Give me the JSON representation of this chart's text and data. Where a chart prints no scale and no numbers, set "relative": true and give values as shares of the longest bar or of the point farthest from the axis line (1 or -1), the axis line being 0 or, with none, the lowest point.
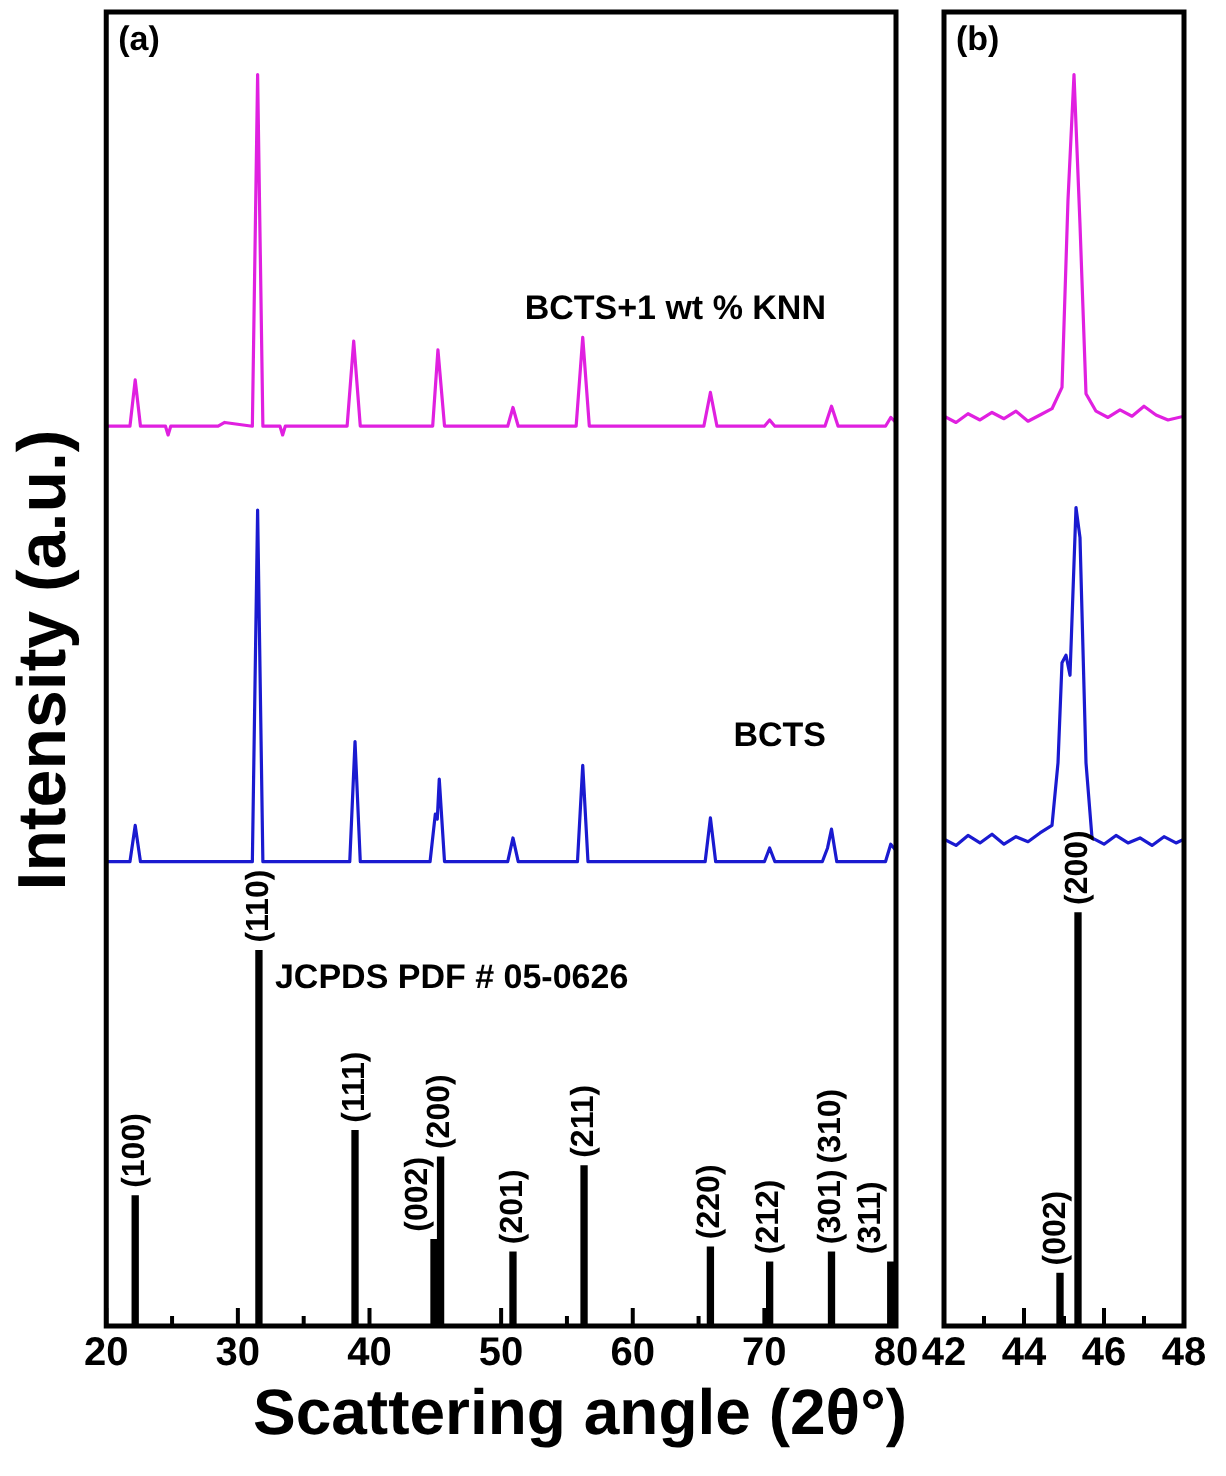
{
  "chart_data": [
    {
      "type": "line",
      "title": "(a)",
      "xlabel": "Scattering angle (2θ°)",
      "ylabel": "Intensity (a.u.)",
      "relative": true,
      "grid": false,
      "legend": false,
      "tick_labels": "x",
      "marker": "none",
      "line_style": "solid",
      "xlim": [
        20,
        80
      ],
      "xticks": [
        20,
        {
          "value": 25,
          "label": null
        },
        30,
        {
          "value": 35,
          "label": null
        },
        40,
        {
          "value": 45,
          "label": null
        },
        50,
        {
          "value": 55,
          "label": null
        },
        60,
        {
          "value": 65,
          "label": null
        },
        70,
        {
          "value": 75,
          "label": null
        },
        80
      ],
      "series": [
        {
          "name": "BCTS+1 wt % KNN",
          "color": "#e020e0",
          "x": [
            20,
            21.8,
            22.2,
            22.6,
            24.5,
            24.7,
            24.9,
            28.5,
            29,
            31.1,
            31.5,
            31.9,
            33.2,
            33.4,
            33.6,
            38.3,
            38.8,
            39.3,
            44.8,
            45.2,
            45.7,
            50.5,
            50.9,
            51.3,
            55.7,
            56.2,
            56.7,
            65.4,
            65.9,
            66.4,
            70.0,
            70.4,
            70.8,
            74.6,
            75.1,
            75.6,
            79.2,
            79.6,
            80
          ],
          "values": [
            0.719,
            0.719,
            0.756,
            0.719,
            0.719,
            0.712,
            0.719,
            0.719,
            0.722,
            0.719,
            1.0,
            0.719,
            0.719,
            0.712,
            0.719,
            0.719,
            0.787,
            0.719,
            0.719,
            0.78,
            0.719,
            0.719,
            0.734,
            0.719,
            0.719,
            0.79,
            0.719,
            0.719,
            0.746,
            0.719,
            0.719,
            0.724,
            0.719,
            0.719,
            0.735,
            0.719,
            0.719,
            0.726,
            0.722
          ]
        },
        {
          "name": "BCTS",
          "color": "#1a1ad0",
          "x": [
            20,
            21.8,
            22.2,
            22.6,
            31.1,
            31.5,
            31.9,
            38.5,
            38.9,
            39.3,
            44.6,
            45.0,
            45.15,
            45.3,
            45.7,
            50.5,
            50.9,
            51.3,
            55.8,
            56.2,
            56.6,
            65.5,
            65.9,
            66.3,
            70.0,
            70.4,
            70.8,
            74.4,
            74.8,
            75.1,
            75.5,
            79.2,
            79.6,
            80
          ],
          "values": [
            0.371,
            0.371,
            0.4,
            0.371,
            0.371,
            0.652,
            0.371,
            0.371,
            0.467,
            0.371,
            0.371,
            0.409,
            0.405,
            0.437,
            0.371,
            0.371,
            0.39,
            0.371,
            0.371,
            0.448,
            0.371,
            0.371,
            0.406,
            0.371,
            0.371,
            0.382,
            0.371,
            0.371,
            0.382,
            0.397,
            0.371,
            0.371,
            0.385,
            0.38
          ]
        },
        {
          "name": "JCPDS PDF # 05-0626",
          "type": "bar",
          "color": "#000000",
          "x": [
            22.2,
            31.6,
            38.9,
            44.9,
            45.4,
            50.9,
            56.3,
            65.9,
            70.4,
            75.1,
            79.6
          ],
          "values": [
            0.104,
            0.3,
            0.156,
            0.069,
            0.135,
            0.059,
            0.128,
            0.063,
            0.051,
            0.059,
            0.051
          ]
        }
      ],
      "annotations": [
        {
          "text": "(100)",
          "x": 22.2,
          "y": 0.104
        },
        {
          "text": "(110)",
          "x": 31.6,
          "y": 0.3
        },
        {
          "text": "(111)",
          "x": 38.9,
          "y": 0.156
        },
        {
          "text": "(002)",
          "x": 44.9,
          "y": 0.069
        },
        {
          "text": "(200)",
          "x": 45.4,
          "y": 0.135
        },
        {
          "text": "(201)",
          "x": 50.9,
          "y": 0.059
        },
        {
          "text": "(211)",
          "x": 56.3,
          "y": 0.128
        },
        {
          "text": "(220)",
          "x": 65.9,
          "y": 0.063
        },
        {
          "text": "(212)",
          "x": 70.4,
          "y": 0.051
        },
        {
          "text": "(301)",
          "x": 75.1,
          "y": 0.059
        },
        {
          "text": "(310)",
          "x": 75.1,
          "y": 0.059
        },
        {
          "text": "(311)",
          "x": 79.6,
          "y": 0.051
        }
      ]
    },
    {
      "type": "line",
      "title": "(b)",
      "relative": true,
      "grid": false,
      "legend": false,
      "tick_labels": "x",
      "marker": "none",
      "line_style": "solid",
      "xlim": [
        42,
        48
      ],
      "xticks": [
        42,
        {
          "value": 43,
          "label": null
        },
        44,
        {
          "value": 45,
          "label": null
        },
        46,
        {
          "value": 47,
          "label": null
        },
        48
      ],
      "series": [
        {
          "color": "#e020e0",
          "x": [
            42,
            42.3,
            42.6,
            42.9,
            43.2,
            43.5,
            43.8,
            44.1,
            44.4,
            44.7,
            44.95,
            45.1,
            45.25,
            45.4,
            45.55,
            45.8,
            46.1,
            46.4,
            46.7,
            47.0,
            47.3,
            47.6,
            48
          ],
          "values": [
            0.727,
            0.722,
            0.729,
            0.724,
            0.73,
            0.725,
            0.731,
            0.723,
            0.728,
            0.733,
            0.75,
            0.9,
            1.0,
            0.88,
            0.745,
            0.731,
            0.726,
            0.732,
            0.727,
            0.735,
            0.728,
            0.724,
            0.727
          ]
        },
        {
          "color": "#1a1ad0",
          "x": [
            42,
            42.3,
            42.6,
            42.9,
            43.2,
            43.5,
            43.8,
            44.1,
            44.4,
            44.7,
            44.85,
            44.95,
            45.05,
            45.15,
            45.3,
            45.4,
            45.55,
            45.7,
            46.0,
            46.3,
            46.6,
            46.9,
            47.2,
            47.5,
            47.8,
            48
          ],
          "values": [
            0.389,
            0.384,
            0.392,
            0.386,
            0.393,
            0.385,
            0.391,
            0.387,
            0.394,
            0.4,
            0.45,
            0.53,
            0.536,
            0.52,
            0.654,
            0.63,
            0.45,
            0.39,
            0.385,
            0.392,
            0.386,
            0.39,
            0.384,
            0.391,
            0.386,
            0.389
          ]
        },
        {
          "type": "bar",
          "color": "#000000",
          "x": [
            44.9,
            45.35
          ],
          "values": [
            0.042,
            0.33
          ]
        }
      ],
      "annotations": [
        {
          "text": "(002)",
          "x": 44.9,
          "y": 0.042
        },
        {
          "text": "(200)",
          "x": 45.35,
          "y": 0.33
        }
      ]
    }
  ]
}
